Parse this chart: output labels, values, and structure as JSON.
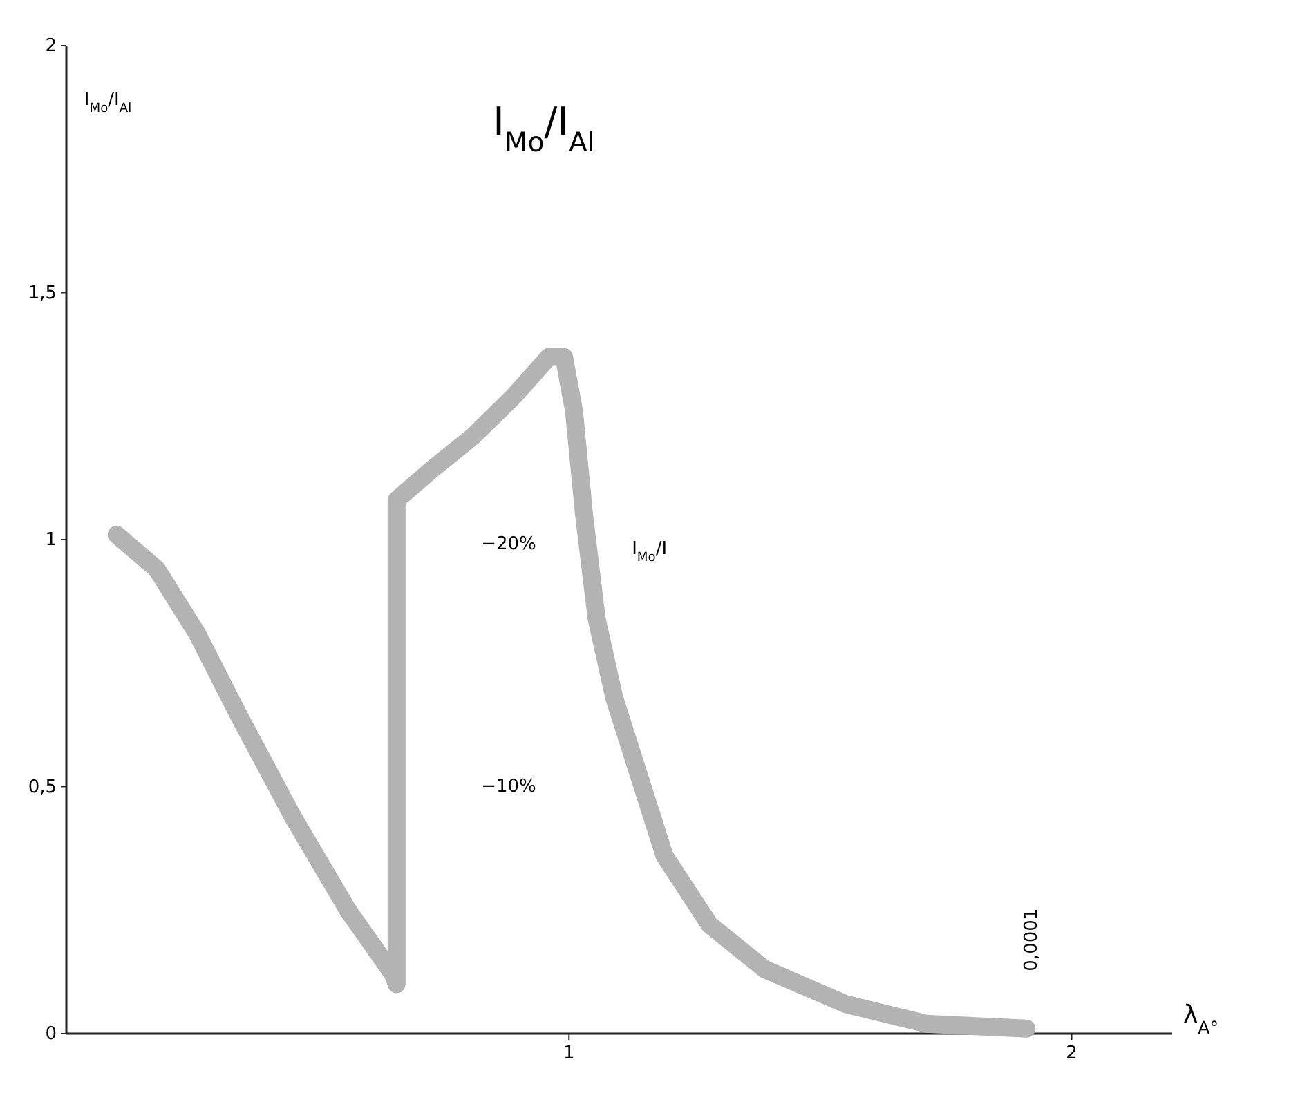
{
  "chart_data": {
    "type": "line",
    "title": "I$_{Mo}$/I$_{Al}$",
    "xlabel": "λ$_{A°}$",
    "ylabel": "I$_{Mo}$/I$_{Al}$",
    "x": [
      0.1,
      0.18,
      0.26,
      0.34,
      0.45,
      0.56,
      0.65,
      0.657,
      0.657,
      0.725,
      0.81,
      0.89,
      0.96,
      0.99,
      1.01,
      1.03,
      1.055,
      1.09,
      1.14,
      1.19,
      1.28,
      1.39,
      1.55,
      1.71,
      1.91
    ],
    "series": [
      {
        "color": "#b3b3b3",
        "values": [
          1.01,
          0.94,
          0.81,
          0.65,
          0.44,
          0.25,
          0.12,
          0.1,
          1.08,
          1.14,
          1.21,
          1.29,
          1.37,
          1.37,
          1.26,
          1.05,
          0.84,
          0.68,
          0.52,
          0.36,
          0.22,
          0.13,
          0.06,
          0.02,
          0.01
        ]
      }
    ],
    "xlim": [
      0,
      2.2
    ],
    "ylim": [
      0,
      2
    ],
    "xticks": [
      1,
      2
    ],
    "yticks": [
      0,
      {
        "value": 0.5,
        "label": "0,5"
      },
      1,
      {
        "value": 1.5,
        "label": "1,5"
      },
      2
    ],
    "grid": false,
    "line_style": "solid",
    "annotations": [
      "−20%",
      "−10%",
      "I$_{Mo}$/I",
      "0,0001"
    ]
  }
}
